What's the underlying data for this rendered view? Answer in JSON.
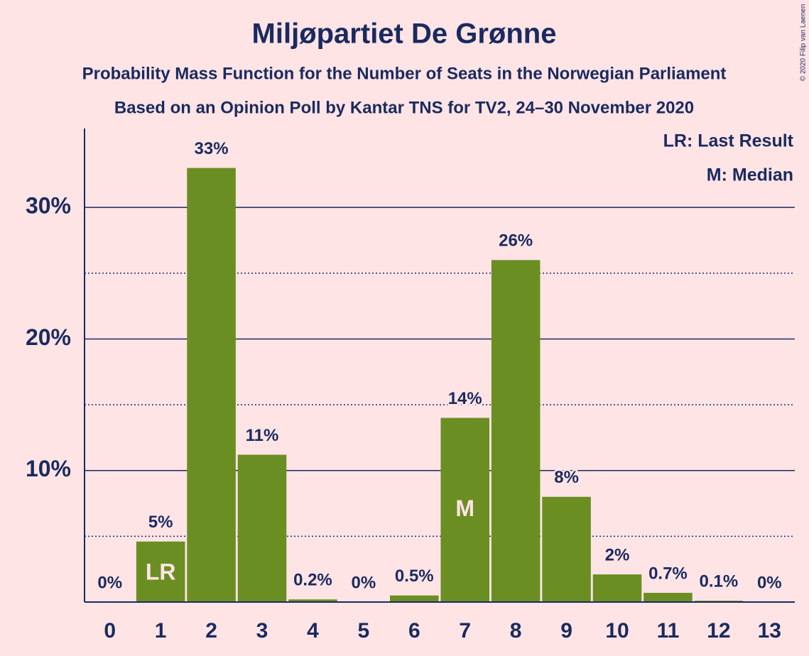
{
  "chart_data": {
    "type": "bar",
    "title": "Miljøpartiet De Grønne",
    "subtitle": "Probability Mass Function for the Number of Seats in the Norwegian Parliament",
    "subtitle2": "Based on an Opinion Poll by Kantar TNS for TV2, 24–30 November 2020",
    "copyright": "© 2020 Filip van Laenen",
    "legend": [
      "LR: Last Result",
      "M: Median"
    ],
    "categories": [
      "0",
      "1",
      "2",
      "3",
      "4",
      "5",
      "6",
      "7",
      "8",
      "9",
      "10",
      "11",
      "12",
      "13"
    ],
    "values": [
      0,
      4.6,
      33,
      11.2,
      0.2,
      0,
      0.5,
      14,
      26,
      8,
      2.1,
      0.7,
      0.1,
      0
    ],
    "value_labels": [
      "0%",
      "5%",
      "33%",
      "11%",
      "0.2%",
      "0%",
      "0.5%",
      "14%",
      "26%",
      "8%",
      "2%",
      "0.7%",
      "0.1%",
      "0%"
    ],
    "markers": [
      {
        "label": "LR",
        "category": "1"
      },
      {
        "label": "M",
        "category": "7"
      }
    ],
    "color": "#6b8e23",
    "ylim": [
      0,
      36
    ],
    "yticks": [
      {
        "value": 10,
        "label": "10%"
      },
      {
        "value": 20,
        "label": "20%"
      },
      {
        "value": 30,
        "label": "30%"
      }
    ],
    "minor_gridlines": [
      5,
      15,
      25
    ],
    "grid": true
  }
}
